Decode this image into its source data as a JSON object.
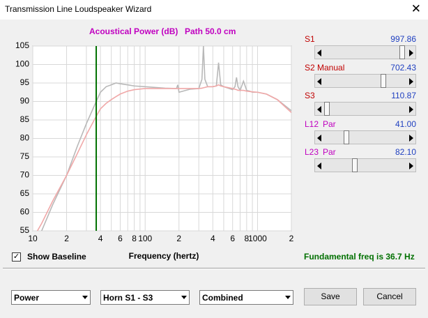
{
  "window": {
    "title": "Transmission Line Loudspeaker Wizard"
  },
  "chart_data": {
    "type": "line",
    "title": "Acoustical Power (dB)",
    "subtitle": "Path 50.0 cm",
    "x_label": "Frequency (hertz)",
    "log_x": true,
    "grid": true,
    "xlim": [
      10,
      2000
    ],
    "ylim": [
      55,
      105
    ],
    "xticks": [
      10,
      {
        "value": 20,
        "label": "2"
      },
      {
        "value": 40,
        "label": "4"
      },
      {
        "value": 60,
        "label": "6"
      },
      {
        "value": 80,
        "label": "8"
      },
      100,
      {
        "value": 200,
        "label": "2"
      },
      {
        "value": 400,
        "label": "4"
      },
      {
        "value": 600,
        "label": "6"
      },
      {
        "value": 800,
        "label": "8"
      },
      1000,
      {
        "value": 2000,
        "label": "2"
      }
    ],
    "xminor": [
      30,
      50,
      70,
      90,
      300,
      500,
      700,
      900
    ],
    "yticks": [
      55,
      60,
      65,
      70,
      75,
      80,
      85,
      90,
      95,
      100,
      105
    ],
    "fundamental": 36.7,
    "fundamental_color": "#007000",
    "fundamental_label": "Fundamental freq is 36.7 Hz",
    "x": [
      11,
      12,
      15,
      20,
      25,
      30,
      36.7,
      40,
      45,
      50,
      55,
      60,
      70,
      80,
      100,
      150,
      190,
      195,
      200,
      250,
      300,
      320,
      330,
      340,
      360,
      400,
      430,
      450,
      470,
      500,
      600,
      630,
      650,
      670,
      700,
      750,
      800,
      850,
      900,
      1000,
      1200,
      1500,
      2000
    ],
    "series": [
      {
        "color": "#b8b8b8",
        "values": [
          53,
          55,
          62,
          70,
          78,
          84,
          90,
          92.5,
          94,
          94.5,
          95,
          94.8,
          94.5,
          94.2,
          94,
          93.6,
          93.5,
          94.5,
          92.5,
          93.3,
          93.5,
          96,
          105,
          96,
          94,
          94,
          94.2,
          100.5,
          94.5,
          94,
          93.2,
          94,
          96.5,
          94,
          93,
          95.5,
          93,
          92.8,
          92.5,
          92.5,
          92,
          90.5,
          87.5
        ]
      },
      {
        "color": "#f0a8a8",
        "values": [
          55,
          57,
          63,
          70,
          76,
          81,
          86,
          88,
          89.5,
          90.5,
          91.3,
          92,
          92.8,
          93.2,
          93.5,
          93.5,
          93.5,
          93.5,
          93.5,
          93.5,
          93.5,
          93.6,
          93.7,
          93.8,
          94,
          94,
          94.2,
          94.5,
          94.2,
          94,
          93.5,
          93.3,
          93.2,
          93,
          93,
          93,
          92.8,
          92.7,
          92.6,
          92.5,
          92,
          90.5,
          87
        ]
      }
    ]
  },
  "sliders": [
    {
      "name": "S1",
      "value": "997.86"
    },
    {
      "name": "S2",
      "mode": "Manual",
      "value": "702.43"
    },
    {
      "name": "S3",
      "value": "110.87"
    },
    {
      "name": "L12",
      "mode": "Par",
      "value": "41.00"
    },
    {
      "name": "L23",
      "mode": "Par",
      "value": "82.10"
    }
  ],
  "checkbox": {
    "label": "Show Baseline",
    "checked": true
  },
  "dropdowns": [
    "Power",
    "Horn S1 - S3",
    "Combined"
  ],
  "buttons": [
    "Save",
    "Cancel"
  ]
}
